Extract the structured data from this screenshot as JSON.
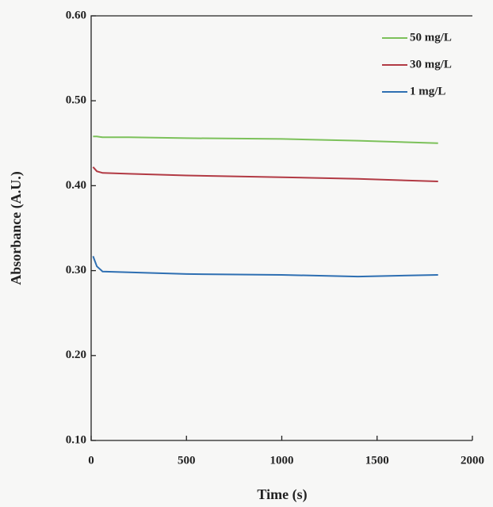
{
  "chart_data": {
    "type": "line",
    "x_label": "Time (s)",
    "y_label": "Absorbance (A.U.)",
    "x": [
      10,
      30,
      60,
      200,
      500,
      1000,
      1400,
      1820
    ],
    "series": [
      {
        "name": "50 mg/L",
        "color": "#7cc15a",
        "values": [
          0.458,
          0.458,
          0.457,
          0.457,
          0.456,
          0.455,
          0.453,
          0.45
        ]
      },
      {
        "name": "30 mg/L",
        "color": "#b23a44",
        "values": [
          0.422,
          0.417,
          0.415,
          0.414,
          0.412,
          0.41,
          0.408,
          0.405
        ]
      },
      {
        "name": "1 mg/L",
        "color": "#2e6fb2",
        "values": [
          0.317,
          0.305,
          0.299,
          0.298,
          0.296,
          0.295,
          0.293,
          0.295
        ]
      }
    ],
    "xlim": [
      0,
      2000
    ],
    "xticks": [
      0,
      500,
      1000,
      1500,
      2000
    ],
    "ylim": [
      0.1,
      0.6
    ],
    "yticks": [
      {
        "value": 0.1,
        "label": "0.10"
      },
      {
        "value": 0.2,
        "label": "0.20"
      },
      {
        "value": 0.3,
        "label": "0.30"
      },
      {
        "value": 0.4,
        "label": "0.40"
      },
      {
        "value": 0.5,
        "label": "0.50"
      },
      {
        "value": 0.6,
        "label": "0.60"
      }
    ],
    "grid": false,
    "legend": "upper right"
  }
}
